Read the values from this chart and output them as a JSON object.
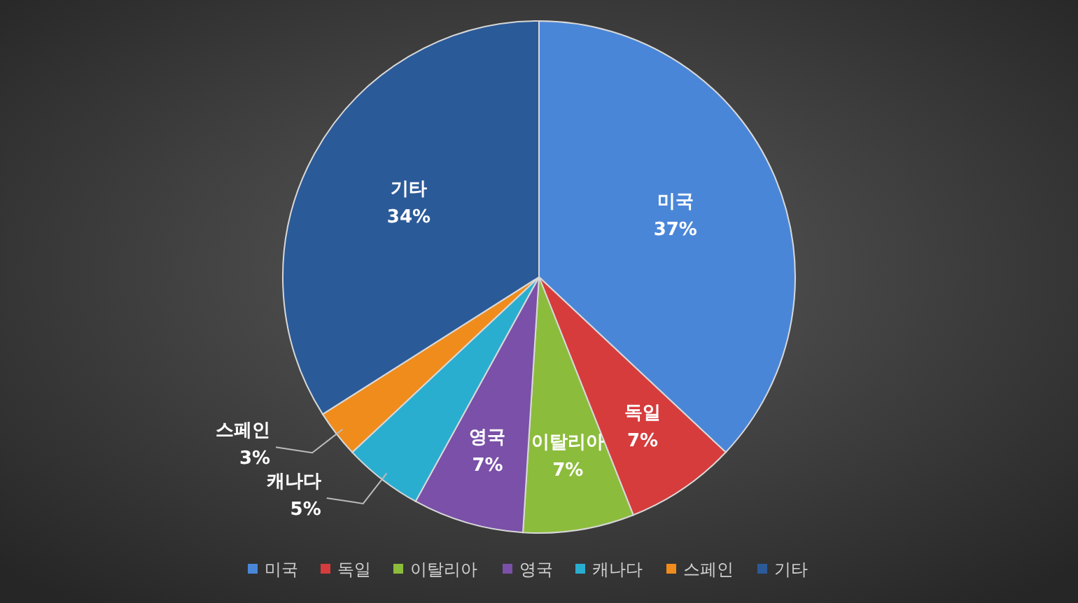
{
  "chart_data": {
    "type": "pie",
    "categories": [
      "미국",
      "독일",
      "이탈리아",
      "영국",
      "캐나다",
      "스페인",
      "기타"
    ],
    "values": [
      37,
      7,
      7,
      7,
      5,
      3,
      34
    ],
    "colors": [
      "#4a86d8",
      "#d63c3c",
      "#8cbc3c",
      "#7a50a8",
      "#2aaed0",
      "#f08c1c",
      "#2b5a98"
    ],
    "value_labels": [
      "37%",
      "7%",
      "7%",
      "7%",
      "5%",
      "3%",
      "34%"
    ],
    "legend": "bottom"
  }
}
